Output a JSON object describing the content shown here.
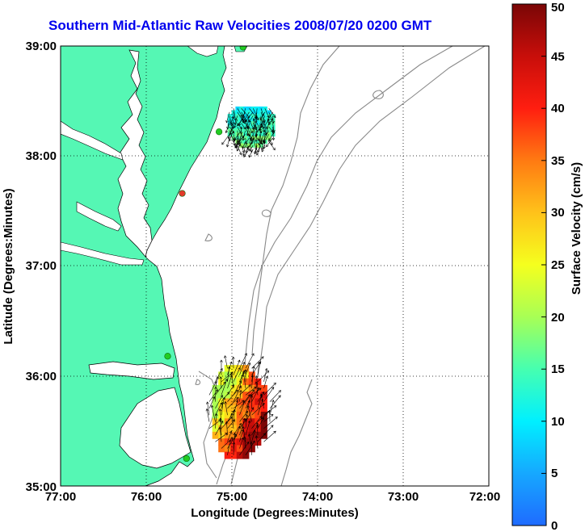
{
  "title": "Southern Mid-Atlantic Raw Velocities 2008/07/20 0200 GMT",
  "map": {
    "xlabel": "Longitude (Degrees:Minutes)",
    "ylabel": "Latitude (Degrees:Minutes)",
    "x_ticks": [
      "77:00",
      "76:00",
      "75:00",
      "74:00",
      "73:00",
      "72:00"
    ],
    "y_ticks": [
      "35:00",
      "36:00",
      "37:00",
      "38:00",
      "39:00"
    ],
    "lon_range": [
      -77,
      -72
    ],
    "lat_range": [
      35,
      39
    ],
    "land_color": "#55f7b4",
    "water_color": "#ffffff",
    "bathymetry_color": "#8a8a8a"
  },
  "colorbar": {
    "label": "Surface Velocity (cm/s)",
    "ticks": [
      "0",
      "5",
      "10",
      "15",
      "20",
      "25",
      "30",
      "35",
      "40",
      "45",
      "50"
    ],
    "range": [
      0,
      50
    ]
  },
  "stations": [
    {
      "lon": -74.87,
      "lat": 38.99,
      "color": "#22cc22"
    },
    {
      "lon": -75.15,
      "lat": 38.22,
      "color": "#22cc22"
    },
    {
      "lon": -75.58,
      "lat": 37.66,
      "color": "#e23a2a"
    },
    {
      "lon": -75.75,
      "lat": 36.18,
      "color": "#22cc22"
    },
    {
      "lon": -75.53,
      "lat": 35.25,
      "color": "#22cc22"
    }
  ],
  "vector_fields": [
    {
      "lon": [
        -75.05,
        -74.5
      ],
      "lat": [
        37.98,
        38.45
      ],
      "speed_min": 8,
      "speed_max": 22
    },
    {
      "lon": [
        -75.3,
        -74.45
      ],
      "lat": [
        35.25,
        36.1
      ],
      "speed_min": 20,
      "speed_max": 50
    }
  ]
}
